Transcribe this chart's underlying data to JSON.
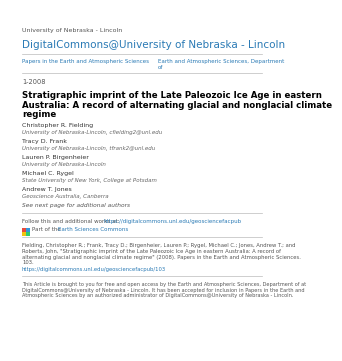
{
  "background_color": "#ffffff",
  "top_label": "University of Nebraska - Lincoln",
  "title_header": "DigitalCommons@University of Nebraska - Lincoln",
  "title_header_color": "#2a7ab5",
  "divider_color": "#bbbbbb",
  "col1_label": "Papers in the Earth and Atmospheric Sciences",
  "col1_color": "#2a7ab5",
  "col2_label": "Earth and Atmospheric Sciences, Department\nof",
  "col2_color": "#2a7ab5",
  "date": "1-2008",
  "paper_title_line1": "Stratigraphic imprint of the Late Paleozoic Ice Age in eastern",
  "paper_title_line2": "Australia: A record of alternating glacial and nonglacial climate",
  "paper_title_line3": "regime",
  "paper_title_color": "#000000",
  "authors": [
    {
      "name": "Christopher R. Fielding",
      "affil": "University of Nebraska-Lincoln, cfielding2@unl.edu"
    },
    {
      "name": "Tracy D. Frank",
      "affil": "University of Nebraska-Lincoln, tfrank2@unl.edu"
    },
    {
      "name": "Lauren P. Birgenheier",
      "affil": "University of Nebraska-Lincoln"
    },
    {
      "name": "Michael C. Rygel",
      "affil": "State University of New York, College at Potsdam"
    },
    {
      "name": "Andrew T. Jones",
      "affil": "Geoscience Australia, Canberra"
    }
  ],
  "see_next": "See next page for additional authors",
  "follow_text": "Follow this and additional works at: ",
  "follow_link": "https://digitalcommons.unl.edu/geosciencefacpub",
  "follow_link_color": "#2a7ab5",
  "part_of_text": "Part of the ",
  "part_of_link": "Earth Sciences Commons",
  "part_of_link_color": "#2a7ab5",
  "citation_lines": [
    "Fielding, Christopher R.; Frank, Tracy D.; Birgenheier, Lauren P.; Rygel, Michael C.; Jones, Andrew T.; and",
    "Roberts, John, \"Stratigraphic imprint of the Late Paleozoic Ice Age in eastern Australia: A record of",
    "alternating glacial and nonglacial climate regime\" (2008). Papers in the Earth and Atmospheric Sciences.",
    "103."
  ],
  "citation_link": "https://digitalcommons.unl.edu/geosciencefacpub/103",
  "citation_link_color": "#2a7ab5",
  "footer_lines": [
    "This Article is brought to you for free and open access by the Earth and Atmospheric Sciences, Department of at",
    "DigitalCommons@University of Nebraska - Lincoln. It has been accepted for inclusion in Papers in the Earth and",
    "Atmospheric Sciences by an authorized administrator of DigitalCommons@University of Nebraska - Lincoln."
  ],
  "icon_colors": [
    "#e74c3c",
    "#3498db",
    "#f1c40f",
    "#2ecc71"
  ],
  "name_color": "#333333",
  "affil_color": "#666666",
  "small_text_color": "#555555",
  "gray_text_color": "#777777"
}
